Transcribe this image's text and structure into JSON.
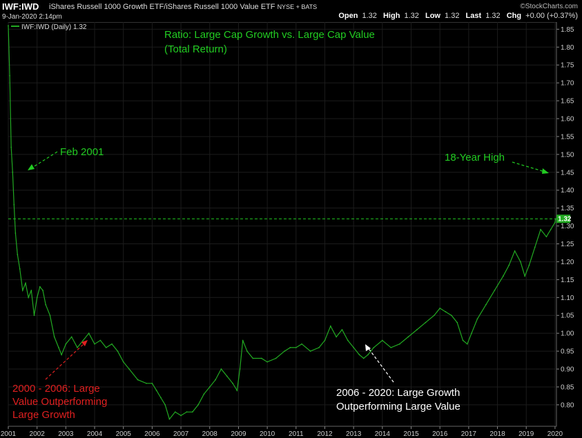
{
  "header": {
    "symbol": "IWF:IWD",
    "description": "iShares Russell 1000 Growth ETF/iShares Russell 1000 Value ETF",
    "exchange": "NYSE + BATS",
    "datetime": "9-Jan-2020 2:14pm",
    "logo": "©StockCharts.com",
    "quote": {
      "open_label": "Open",
      "open": "1.32",
      "high_label": "High",
      "high": "1.32",
      "low_label": "Low",
      "low": "1.32",
      "last_label": "Last",
      "last": "1.32",
      "chg_label": "Chg",
      "chg": "+0.00 (+0.37%)"
    }
  },
  "chart_data": {
    "type": "line",
    "legend": "IWF:IWD (Daily) 1.32",
    "xlim": [
      2001.0,
      2020.05
    ],
    "ylim": [
      0.74,
      1.87
    ],
    "x_ticks": [
      "2001",
      "2002",
      "2003",
      "2004",
      "2005",
      "2006",
      "2007",
      "2008",
      "2009",
      "2010",
      "2011",
      "2012",
      "2013",
      "2014",
      "2015",
      "2016",
      "2017",
      "2018",
      "2019",
      "2020"
    ],
    "y_ticks": [
      "0.80",
      "0.85",
      "0.90",
      "0.95",
      "1.00",
      "1.05",
      "1.10",
      "1.15",
      "1.20",
      "1.25",
      "1.30",
      "1.35",
      "1.40",
      "1.45",
      "1.50",
      "1.55",
      "1.60",
      "1.65",
      "1.70",
      "1.75",
      "1.80",
      "1.85"
    ],
    "last_value_label": "1.32",
    "reference_line": {
      "y": 1.32,
      "style": "dashed"
    },
    "series": [
      {
        "color": "#22aa22",
        "points": [
          [
            2001.0,
            1.86
          ],
          [
            2001.05,
            1.72
          ],
          [
            2001.1,
            1.52
          ],
          [
            2001.15,
            1.45
          ],
          [
            2001.2,
            1.36
          ],
          [
            2001.25,
            1.28
          ],
          [
            2001.32,
            1.22
          ],
          [
            2001.4,
            1.18
          ],
          [
            2001.5,
            1.12
          ],
          [
            2001.6,
            1.14
          ],
          [
            2001.7,
            1.1
          ],
          [
            2001.8,
            1.12
          ],
          [
            2001.9,
            1.05
          ],
          [
            2002.0,
            1.1
          ],
          [
            2002.1,
            1.13
          ],
          [
            2002.2,
            1.12
          ],
          [
            2002.3,
            1.08
          ],
          [
            2002.45,
            1.05
          ],
          [
            2002.6,
            0.99
          ],
          [
            2002.75,
            0.96
          ],
          [
            2002.85,
            0.94
          ],
          [
            2003.0,
            0.97
          ],
          [
            2003.2,
            0.99
          ],
          [
            2003.4,
            0.96
          ],
          [
            2003.6,
            0.98
          ],
          [
            2003.8,
            1.0
          ],
          [
            2004.0,
            0.97
          ],
          [
            2004.2,
            0.98
          ],
          [
            2004.4,
            0.96
          ],
          [
            2004.6,
            0.97
          ],
          [
            2004.8,
            0.95
          ],
          [
            2005.0,
            0.92
          ],
          [
            2005.2,
            0.9
          ],
          [
            2005.5,
            0.87
          ],
          [
            2005.8,
            0.86
          ],
          [
            2006.0,
            0.86
          ],
          [
            2006.15,
            0.84
          ],
          [
            2006.3,
            0.82
          ],
          [
            2006.45,
            0.8
          ],
          [
            2006.6,
            0.76
          ],
          [
            2006.8,
            0.78
          ],
          [
            2007.0,
            0.77
          ],
          [
            2007.2,
            0.78
          ],
          [
            2007.4,
            0.78
          ],
          [
            2007.6,
            0.8
          ],
          [
            2007.8,
            0.83
          ],
          [
            2008.0,
            0.85
          ],
          [
            2008.2,
            0.87
          ],
          [
            2008.4,
            0.9
          ],
          [
            2008.6,
            0.88
          ],
          [
            2008.8,
            0.86
          ],
          [
            2008.95,
            0.84
          ],
          [
            2009.05,
            0.9
          ],
          [
            2009.15,
            0.98
          ],
          [
            2009.3,
            0.95
          ],
          [
            2009.5,
            0.93
          ],
          [
            2009.8,
            0.93
          ],
          [
            2010.0,
            0.92
          ],
          [
            2010.3,
            0.93
          ],
          [
            2010.6,
            0.95
          ],
          [
            2010.8,
            0.96
          ],
          [
            2011.0,
            0.96
          ],
          [
            2011.2,
            0.97
          ],
          [
            2011.5,
            0.95
          ],
          [
            2011.8,
            0.96
          ],
          [
            2012.0,
            0.98
          ],
          [
            2012.2,
            1.02
          ],
          [
            2012.4,
            0.99
          ],
          [
            2012.6,
            1.01
          ],
          [
            2012.8,
            0.98
          ],
          [
            2013.0,
            0.96
          ],
          [
            2013.2,
            0.94
          ],
          [
            2013.35,
            0.93
          ],
          [
            2013.5,
            0.94
          ],
          [
            2013.7,
            0.96
          ],
          [
            2014.0,
            0.98
          ],
          [
            2014.3,
            0.96
          ],
          [
            2014.6,
            0.97
          ],
          [
            2014.9,
            0.99
          ],
          [
            2015.2,
            1.01
          ],
          [
            2015.5,
            1.03
          ],
          [
            2015.8,
            1.05
          ],
          [
            2016.0,
            1.07
          ],
          [
            2016.2,
            1.06
          ],
          [
            2016.4,
            1.05
          ],
          [
            2016.6,
            1.03
          ],
          [
            2016.8,
            0.98
          ],
          [
            2016.95,
            0.97
          ],
          [
            2017.1,
            1.0
          ],
          [
            2017.3,
            1.04
          ],
          [
            2017.6,
            1.08
          ],
          [
            2017.9,
            1.12
          ],
          [
            2018.2,
            1.16
          ],
          [
            2018.4,
            1.19
          ],
          [
            2018.6,
            1.23
          ],
          [
            2018.8,
            1.2
          ],
          [
            2018.95,
            1.16
          ],
          [
            2019.1,
            1.19
          ],
          [
            2019.3,
            1.24
          ],
          [
            2019.5,
            1.29
          ],
          [
            2019.7,
            1.27
          ],
          [
            2019.85,
            1.29
          ],
          [
            2020.0,
            1.31
          ],
          [
            2020.02,
            1.32
          ]
        ]
      }
    ],
    "annotations": [
      {
        "text": "Ratio: Large Cap Growth vs. Large Cap Value",
        "color": "#22cc22"
      },
      {
        "text": "(Total Return)",
        "color": "#22cc22"
      },
      {
        "text": "Feb 2001",
        "color": "#22cc22"
      },
      {
        "text": "18-Year High",
        "color": "#22cc22"
      },
      {
        "text": "2000 - 2006: Large",
        "color": "#e02020"
      },
      {
        "text": "Value Outperforming",
        "color": "#e02020"
      },
      {
        "text": "Large Growth",
        "color": "#e02020"
      },
      {
        "text": "2006 - 2020: Large Growth",
        "color": "#ffffff"
      },
      {
        "text": "Outperforming Large Value",
        "color": "#ffffff"
      }
    ]
  }
}
